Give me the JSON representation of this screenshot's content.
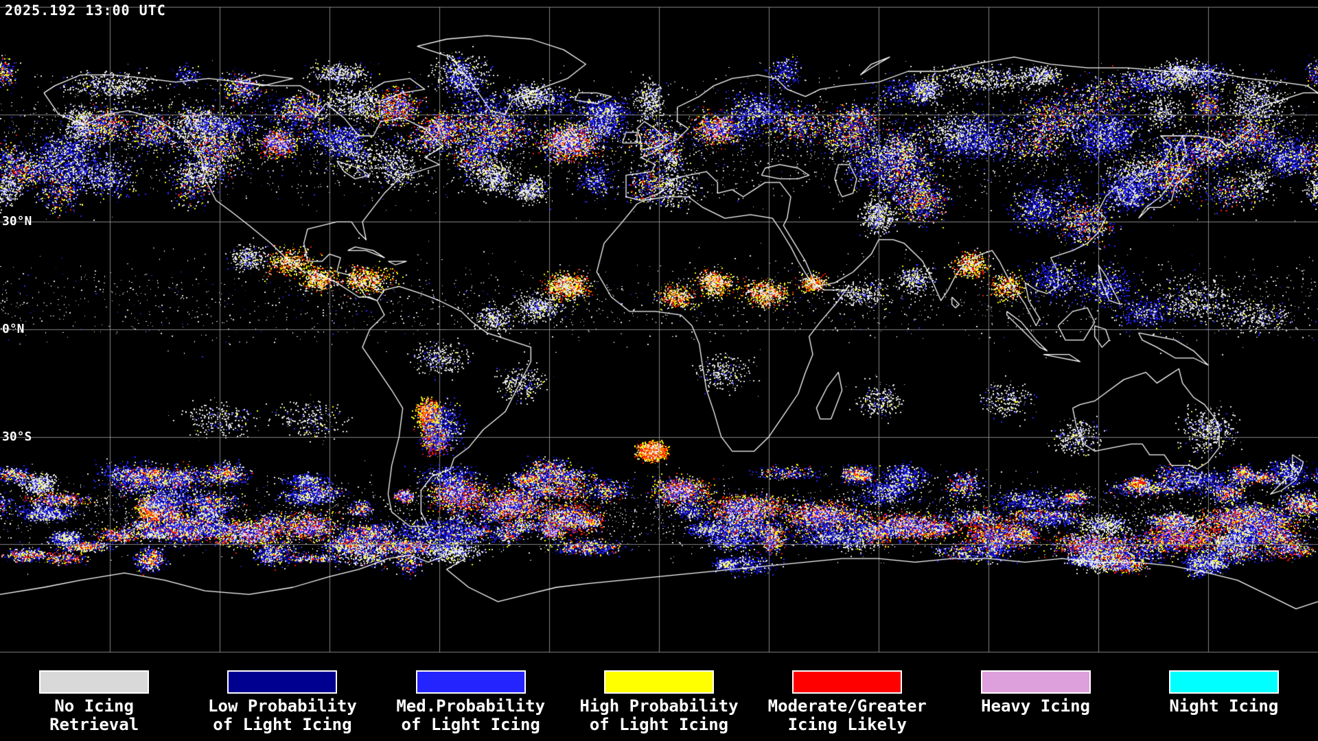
{
  "map": {
    "timestamp": "2025.192 13:00 UTC",
    "lat_labels": [
      {
        "text": "30°N"
      },
      {
        "text": "0°N"
      },
      {
        "text": "30°S"
      }
    ],
    "colors": {
      "background": "#000000",
      "coastline": "#ffffff",
      "grid": "#9b9b9b",
      "no_icing": "#e6e6e6",
      "low_prob": "#0000a0",
      "med_prob": "#2a2aff",
      "high_prob": "#ffff00",
      "moderate": "#ff1800",
      "heavy": "#ee82ee",
      "night": "#00ffff",
      "orange_mix": "#ff9900"
    }
  },
  "legend": {
    "items": [
      {
        "label_line1": "No Icing",
        "label_line2": "Retrieval",
        "color": "#d9d9d9"
      },
      {
        "label_line1": "Low Probability",
        "label_line2": "of Light Icing",
        "color": "#000090"
      },
      {
        "label_line1": "Med.Probability",
        "label_line2": "of Light Icing",
        "color": "#2424ff"
      },
      {
        "label_line1": "High Probability",
        "label_line2": "of Light Icing",
        "color": "#ffff00"
      },
      {
        "label_line1": "Moderate/Greater",
        "label_line2": "Icing Likely",
        "color": "#ff0000"
      },
      {
        "label_line1": "Heavy Icing",
        "label_line2": "",
        "color": "#dda0dd"
      },
      {
        "label_line1": "Night Icing",
        "label_line2": "",
        "color": "#00ffff"
      }
    ]
  }
}
